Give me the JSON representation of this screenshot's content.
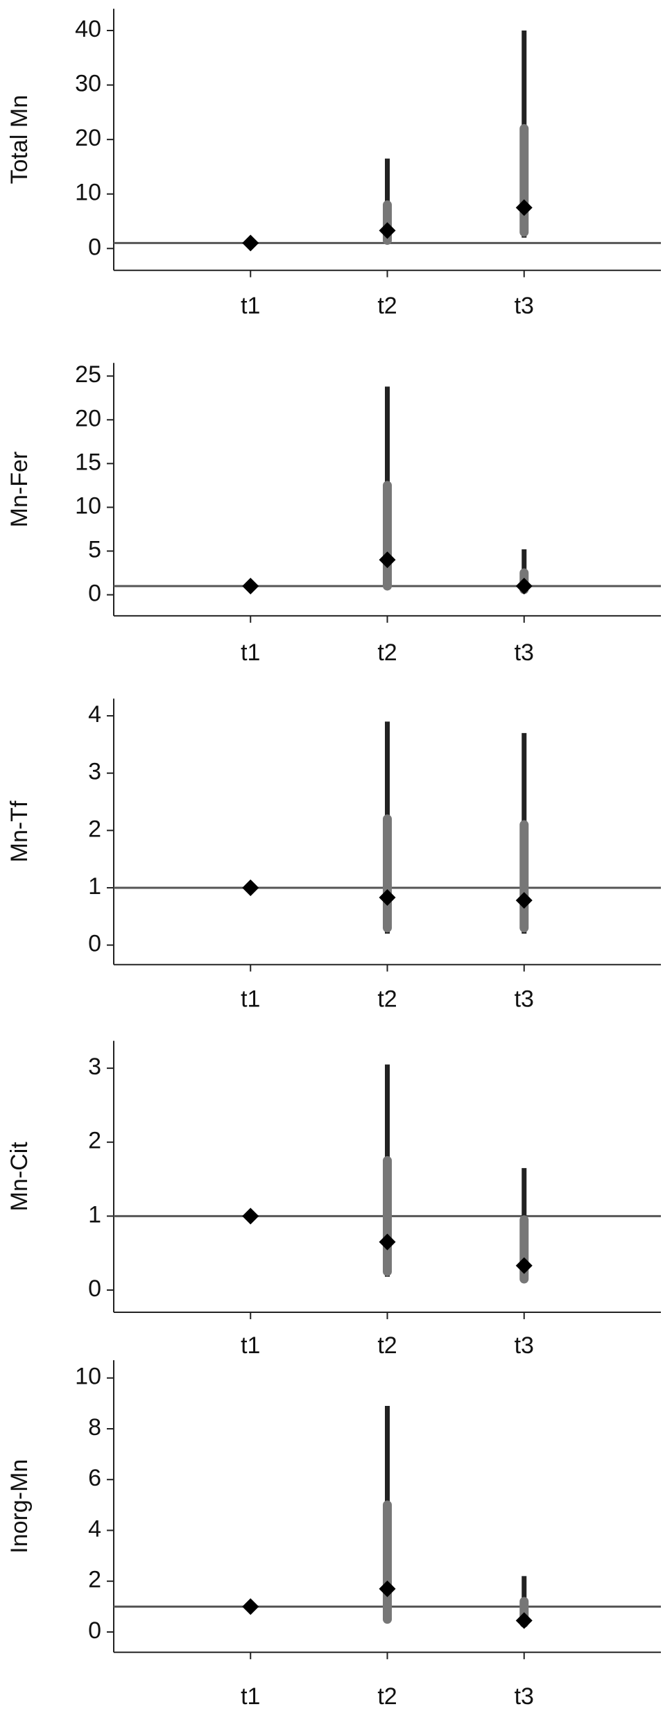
{
  "chart_data": [
    {
      "type": "interval",
      "ylabel": "Total Mn",
      "categories": [
        "t1",
        "t2",
        "t3"
      ],
      "values": [
        1,
        3.3,
        7.5
      ],
      "outer_low": [
        null,
        1,
        2
      ],
      "outer_high": [
        null,
        16.5,
        40
      ],
      "inner_low": [
        null,
        1.5,
        3
      ],
      "inner_high": [
        null,
        8,
        22
      ],
      "ref_line": 1,
      "ylim": [
        -4,
        44
      ],
      "yticks": [
        0,
        10,
        20,
        30,
        40
      ],
      "marker_color": "#000000",
      "outer_color": "#222222",
      "inner_color": "#777777",
      "ref_color": "#555555"
    },
    {
      "type": "interval",
      "ylabel": "Mn-Fer",
      "categories": [
        "t1",
        "t2",
        "t3"
      ],
      "values": [
        1,
        4,
        1
      ],
      "outer_low": [
        null,
        0.8,
        0.4
      ],
      "outer_high": [
        null,
        23.8,
        5.2
      ],
      "inner_low": [
        null,
        1,
        0.6
      ],
      "inner_high": [
        null,
        12.5,
        2.5
      ],
      "ref_line": 1,
      "ylim": [
        -2.4,
        26.5
      ],
      "yticks": [
        0,
        5,
        10,
        15,
        20,
        25
      ],
      "marker_color": "#000000",
      "outer_color": "#222222",
      "inner_color": "#777777",
      "ref_color": "#555555"
    },
    {
      "type": "interval",
      "ylabel": "Mn-Tf",
      "categories": [
        "t1",
        "t2",
        "t3"
      ],
      "values": [
        1,
        0.83,
        0.78
      ],
      "outer_low": [
        null,
        0.2,
        0.2
      ],
      "outer_high": [
        null,
        3.9,
        3.7
      ],
      "inner_low": [
        null,
        0.3,
        0.3
      ],
      "inner_high": [
        null,
        2.2,
        2.1
      ],
      "ref_line": 1,
      "ylim": [
        -0.34,
        4.3
      ],
      "yticks": [
        0,
        1,
        2,
        3,
        4
      ],
      "marker_color": "#000000",
      "outer_color": "#222222",
      "inner_color": "#777777",
      "ref_color": "#555555"
    },
    {
      "type": "interval",
      "ylabel": "Mn-Cit",
      "categories": [
        "t1",
        "t2",
        "t3"
      ],
      "values": [
        1,
        0.65,
        0.33
      ],
      "outer_low": [
        null,
        0.18,
        0.12
      ],
      "outer_high": [
        null,
        3.05,
        1.65
      ],
      "inner_low": [
        null,
        0.25,
        0.15
      ],
      "inner_high": [
        null,
        1.75,
        0.95
      ],
      "ref_line": 1,
      "ylim": [
        -0.3,
        3.37
      ],
      "yticks": [
        0,
        1,
        2,
        3
      ],
      "marker_color": "#000000",
      "outer_color": "#222222",
      "inner_color": "#777777",
      "ref_color": "#555555"
    },
    {
      "type": "interval",
      "ylabel": "Inorg-Mn",
      "categories": [
        "t1",
        "t2",
        "t3"
      ],
      "values": [
        1,
        1.7,
        0.45
      ],
      "outer_low": [
        null,
        0.4,
        0.3
      ],
      "outer_high": [
        null,
        8.9,
        2.2
      ],
      "inner_low": [
        null,
        0.5,
        0.35
      ],
      "inner_high": [
        null,
        5,
        1.2
      ],
      "ref_line": 1,
      "ylim": [
        -0.8,
        10.7
      ],
      "yticks": [
        0,
        2,
        4,
        6,
        8,
        10
      ],
      "marker_color": "#000000",
      "outer_color": "#222222",
      "inner_color": "#777777",
      "ref_color": "#555555"
    }
  ]
}
